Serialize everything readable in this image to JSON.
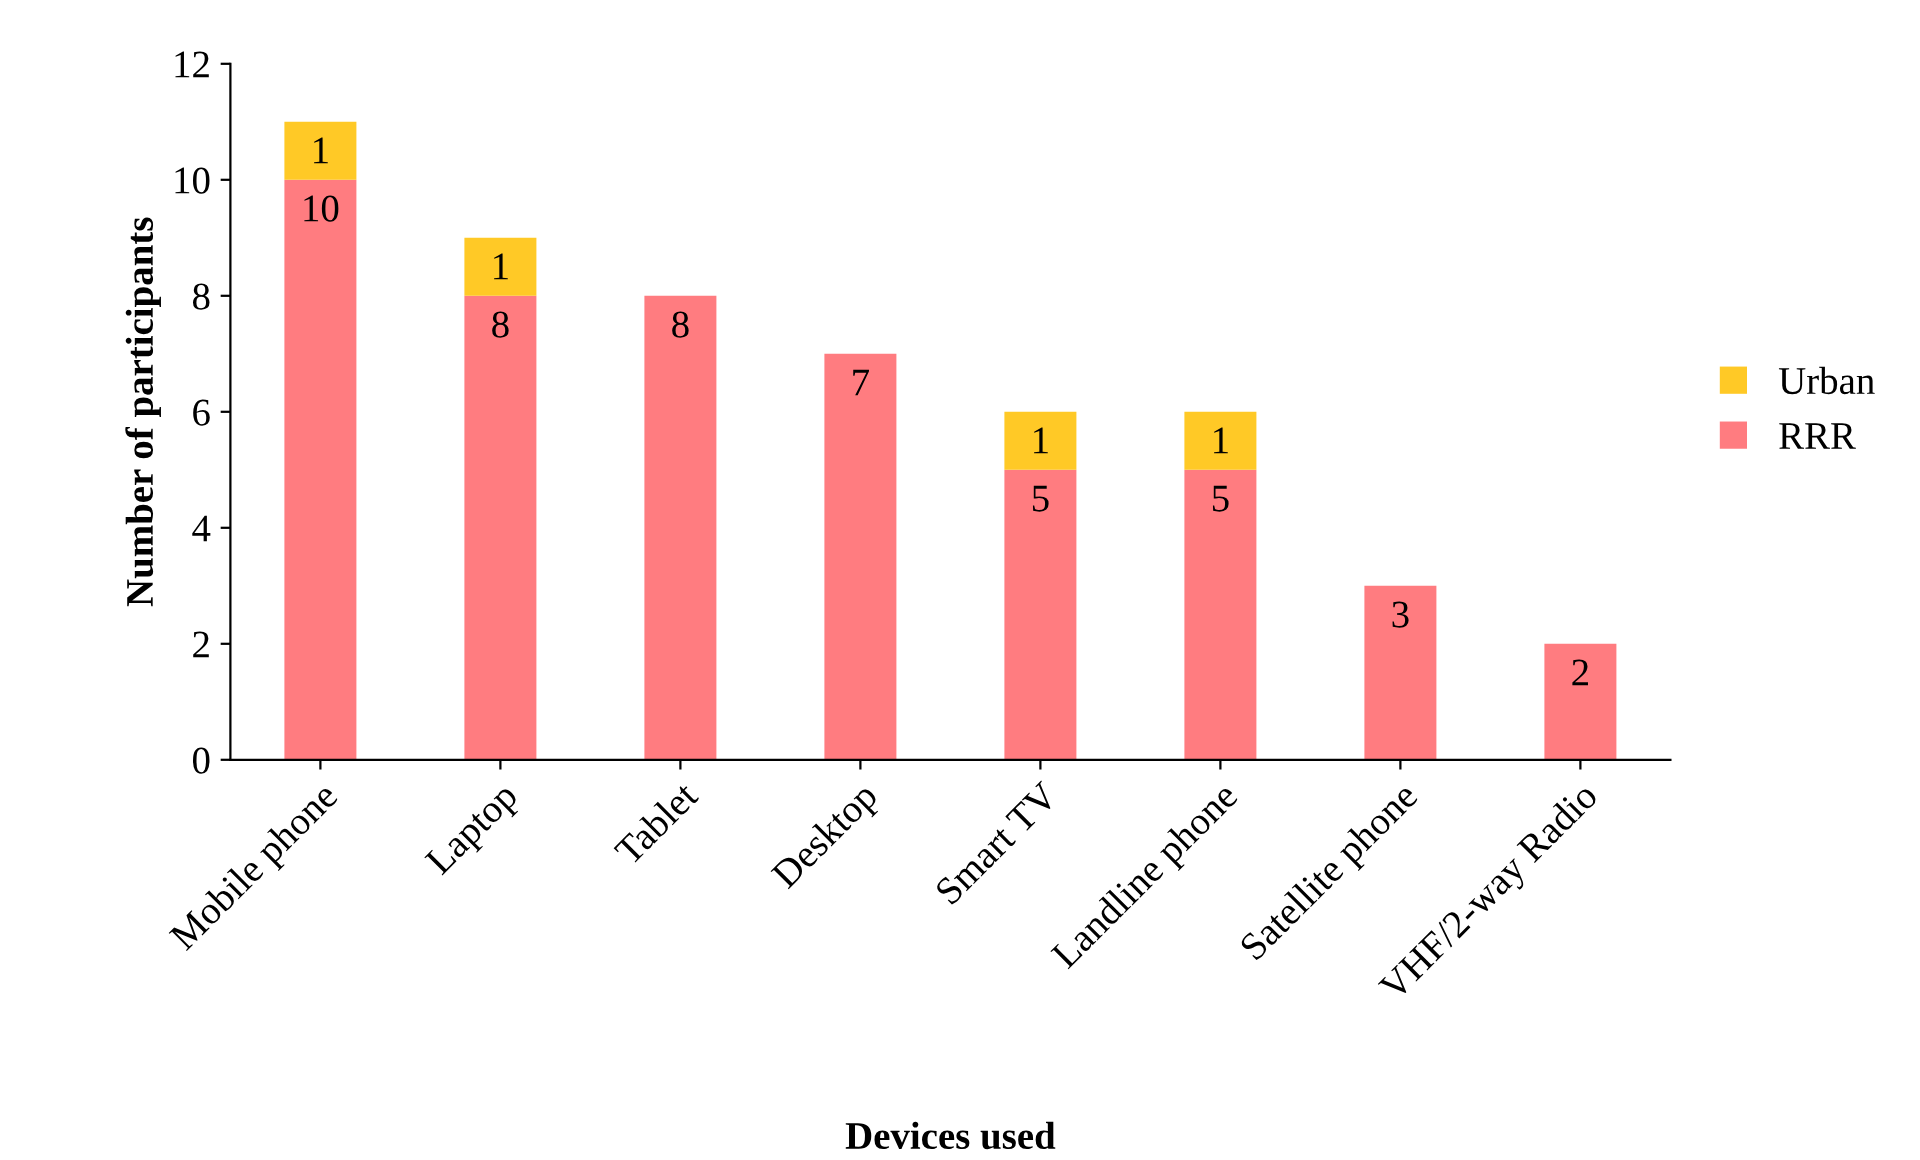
{
  "chart_data": {
    "type": "bar",
    "stacked": true,
    "xlabel": "Devices used",
    "ylabel": "Number of participants",
    "categories": [
      "Mobile phone",
      "Laptop",
      "Tablet",
      "Desktop",
      "Smart TV",
      "Landline phone",
      "Satellite phone",
      "VHF/2-way Radio"
    ],
    "series": [
      {
        "name": "RRR",
        "color": "#ff7c80",
        "values": [
          10,
          8,
          8,
          7,
          5,
          5,
          3,
          2
        ]
      },
      {
        "name": "Urban",
        "color": "#ffc926",
        "values": [
          1,
          1,
          null,
          null,
          1,
          1,
          null,
          null
        ]
      }
    ],
    "ylim": [
      0,
      12
    ],
    "yticks": [
      0,
      2,
      4,
      6,
      8,
      10,
      12
    ],
    "data_labels": true,
    "legend": "right",
    "grid": false
  }
}
